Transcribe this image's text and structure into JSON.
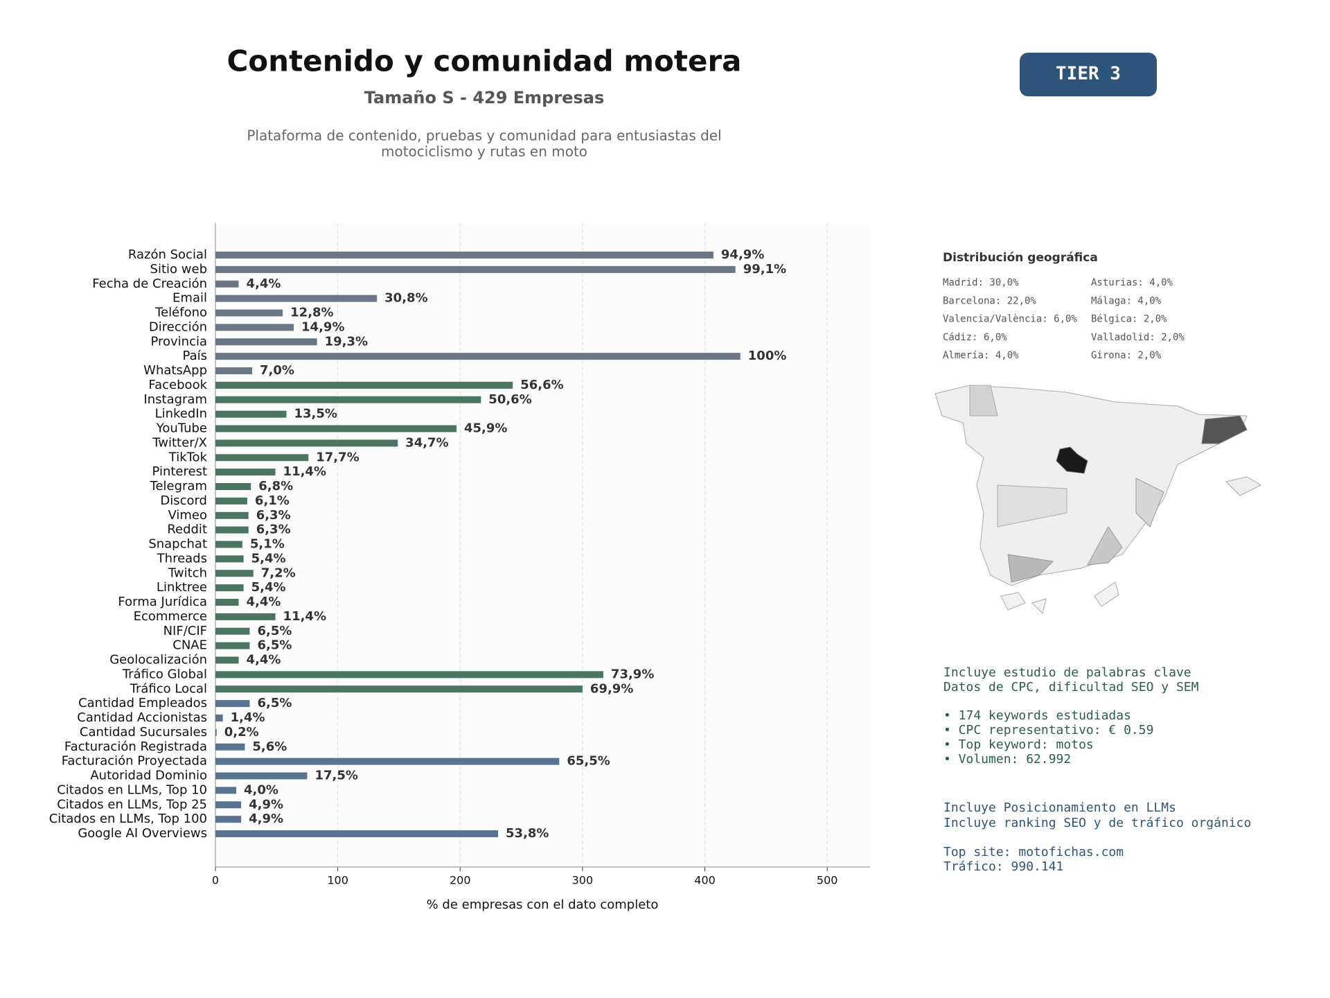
{
  "chart_data": {
    "type": "barh",
    "title": "Contenido y comunidad motera",
    "subtitle": "Tamaño S - 429 Empresas",
    "description": [
      "Plataforma de contenido, pruebas y comunidad para entusiastas del",
      "motociclismo y rutas en moto"
    ],
    "badge": "TIER 3",
    "xlabel": "% de empresas con el dato completo",
    "categories": [
      "Razón Social",
      "Sitio web",
      "Fecha de Creación",
      "Email",
      "Teléfono",
      "Dirección",
      "Provincia",
      "País",
      "WhatsApp",
      "Facebook",
      "Instagram",
      "LinkedIn",
      "YouTube",
      "Twitter/X",
      "TikTok",
      "Pinterest",
      "Telegram",
      "Discord",
      "Vimeo",
      "Reddit",
      "Snapchat",
      "Threads",
      "Twitch",
      "Linktree",
      "Forma Jurídica",
      "Ecommerce",
      "NIF/CIF",
      "CNAE",
      "Geolocalización",
      "Tráfico Global",
      "Tráfico Local",
      "Cantidad Empleados",
      "Cantidad Accionistas",
      "Cantidad Sucursales",
      "Facturación Registrada",
      "Facturación Proyectada",
      "Autoridad Dominio",
      "Citados en LLMs, Top 10",
      "Citados en LLMs, Top 25",
      "Citados en LLMs, Top 100",
      "Google AI Overviews"
    ],
    "values": [
      407,
      425,
      19,
      132,
      55,
      64,
      83,
      429,
      30,
      243,
      217,
      58,
      197,
      149,
      76,
      49,
      29,
      26,
      27,
      27,
      22,
      23,
      31,
      23,
      19,
      49,
      28,
      28,
      19,
      317,
      300,
      28,
      6,
      1,
      24,
      281,
      75,
      17,
      21,
      21,
      231
    ],
    "value_labels": [
      "94,9%",
      "99,1%",
      "4,4%",
      "30,8%",
      "12,8%",
      "14,9%",
      "19,3%",
      "100%",
      "7,0%",
      "56,6%",
      "50,6%",
      "13,5%",
      "45,9%",
      "34,7%",
      "17,7%",
      "11,4%",
      "6,8%",
      "6,1%",
      "6,3%",
      "6,3%",
      "5,1%",
      "5,4%",
      "7,2%",
      "5,4%",
      "4,4%",
      "11,4%",
      "6,5%",
      "6,5%",
      "4,4%",
      "73,9%",
      "69,9%",
      "6,5%",
      "1,4%",
      "0,2%",
      "5,6%",
      "65,5%",
      "17,5%",
      "4,0%",
      "4,9%",
      "4,9%",
      "53,8%"
    ],
    "colors": [
      "#6b7785",
      "#6b7785",
      "#6b7785",
      "#6b7785",
      "#6b7785",
      "#6b7785",
      "#6b7785",
      "#6b7785",
      "#6b7785",
      "#4a7561",
      "#4a7561",
      "#4a7561",
      "#4a7561",
      "#4a7561",
      "#4a7561",
      "#4a7561",
      "#4a7561",
      "#4a7561",
      "#4a7561",
      "#4a7561",
      "#4a7561",
      "#4a7561",
      "#4a7561",
      "#4a7561",
      "#4a7561",
      "#4a7561",
      "#4a7561",
      "#4a7561",
      "#4a7561",
      "#4a7561",
      "#4a7561",
      "#587490",
      "#587490",
      "#587490",
      "#587490",
      "#587490",
      "#587490",
      "#587490",
      "#587490",
      "#587490",
      "#587490"
    ],
    "xlim": [
      0,
      535
    ],
    "xticks": [
      0,
      100,
      200,
      300,
      400,
      500
    ],
    "grid": true,
    "geo": {
      "title": "Distribución geográfica",
      "entries": [
        "Madrid: 30,0%",
        "Barcelona: 22,0%",
        "Valencia/València: 6,0%",
        "Cádiz: 6,0%",
        "Almería: 4,0%",
        "Asturias: 4,0%",
        "Málaga: 4,0%",
        "Bélgica: 2,0%",
        "Valladolid: 2,0%",
        "Girona: 2,0%"
      ]
    },
    "keywords_info": [
      "Incluye estudio de palabras clave",
      "Datos de CPC, dificultad SEO y SEM",
      "• 174 keywords estudiadas",
      "• CPC representativo: € 0.59",
      "• Top keyword: motos",
      "• Volumen: 62.992"
    ],
    "llm_info": [
      "Incluye Posicionamiento en LLMs",
      "Incluye ranking SEO y de tráfico orgánico",
      "Top site: motofichas.com",
      "Tráfico: 990.141"
    ]
  }
}
